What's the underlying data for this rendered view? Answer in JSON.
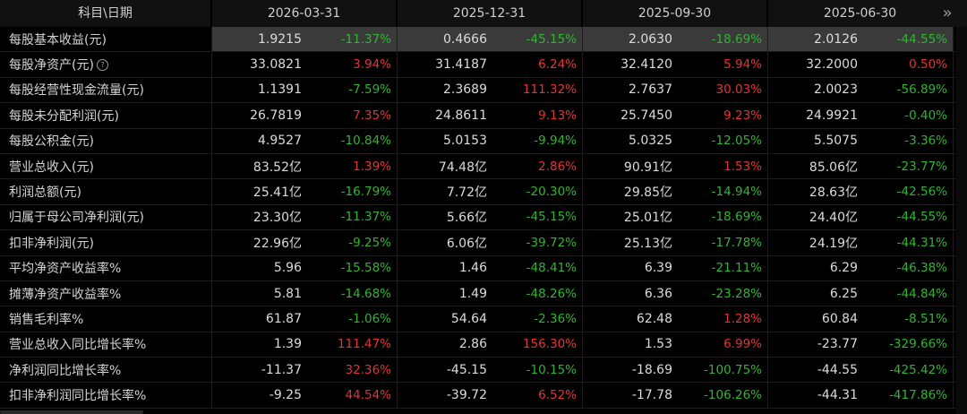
{
  "header": {
    "label": "科目\\日期",
    "dates": [
      "2026-03-31",
      "2025-12-31",
      "2025-09-30",
      "2025-06-30"
    ],
    "more_icon": "»"
  },
  "rows": [
    {
      "label": "每股基本收益(元)",
      "cells": [
        [
          "1.9215",
          "-11.37%"
        ],
        [
          "0.4666",
          "-45.15%"
        ],
        [
          "2.0630",
          "-18.69%"
        ],
        [
          "2.0126",
          "-44.55%"
        ]
      ]
    },
    {
      "label": "每股净资产(元)",
      "info": "?",
      "cells": [
        [
          "33.0821",
          "3.94%"
        ],
        [
          "31.4187",
          "6.24%"
        ],
        [
          "32.4120",
          "5.94%"
        ],
        [
          "32.2000",
          "0.50%"
        ]
      ]
    },
    {
      "label": "每股经营性现金流量(元)",
      "cells": [
        [
          "1.1391",
          "-7.59%"
        ],
        [
          "2.3689",
          "111.32%"
        ],
        [
          "2.7637",
          "30.03%"
        ],
        [
          "2.0023",
          "-56.89%"
        ]
      ]
    },
    {
      "label": "每股未分配利润(元)",
      "cells": [
        [
          "26.7819",
          "7.35%"
        ],
        [
          "24.8611",
          "9.13%"
        ],
        [
          "25.7450",
          "9.23%"
        ],
        [
          "24.9921",
          "-0.40%"
        ]
      ]
    },
    {
      "label": "每股公积金(元)",
      "cells": [
        [
          "4.9527",
          "-10.84%"
        ],
        [
          "5.0153",
          "-9.94%"
        ],
        [
          "5.0325",
          "-12.05%"
        ],
        [
          "5.5075",
          "-3.36%"
        ]
      ]
    },
    {
      "label": "营业总收入(元)",
      "cells": [
        [
          "83.52亿",
          "1.39%"
        ],
        [
          "74.48亿",
          "2.86%"
        ],
        [
          "90.91亿",
          "1.53%"
        ],
        [
          "85.06亿",
          "-23.77%"
        ]
      ]
    },
    {
      "label": "利润总额(元)",
      "cells": [
        [
          "25.41亿",
          "-16.79%"
        ],
        [
          "7.72亿",
          "-20.30%"
        ],
        [
          "29.85亿",
          "-14.94%"
        ],
        [
          "28.63亿",
          "-42.56%"
        ]
      ]
    },
    {
      "label": "归属于母公司净利润(元)",
      "cells": [
        [
          "23.30亿",
          "-11.37%"
        ],
        [
          "5.66亿",
          "-45.15%"
        ],
        [
          "25.01亿",
          "-18.69%"
        ],
        [
          "24.40亿",
          "-44.55%"
        ]
      ]
    },
    {
      "label": "扣非净利润(元)",
      "cells": [
        [
          "22.96亿",
          "-9.25%"
        ],
        [
          "6.06亿",
          "-39.72%"
        ],
        [
          "25.13亿",
          "-17.78%"
        ],
        [
          "24.19亿",
          "-44.31%"
        ]
      ]
    },
    {
      "label": "平均净资产收益率%",
      "cells": [
        [
          "5.96",
          "-15.58%"
        ],
        [
          "1.46",
          "-48.41%"
        ],
        [
          "6.39",
          "-21.11%"
        ],
        [
          "6.29",
          "-46.38%"
        ]
      ]
    },
    {
      "label": "摊薄净资产收益率%",
      "cells": [
        [
          "5.81",
          "-14.68%"
        ],
        [
          "1.49",
          "-48.26%"
        ],
        [
          "6.36",
          "-23.28%"
        ],
        [
          "6.25",
          "-44.84%"
        ]
      ]
    },
    {
      "label": "销售毛利率%",
      "cells": [
        [
          "61.87",
          "-1.06%"
        ],
        [
          "54.64",
          "-2.36%"
        ],
        [
          "62.48",
          "1.28%"
        ],
        [
          "60.84",
          "-8.51%"
        ]
      ]
    },
    {
      "label": "营业总收入同比增长率%",
      "cells": [
        [
          "1.39",
          "111.47%"
        ],
        [
          "2.86",
          "156.30%"
        ],
        [
          "1.53",
          "6.99%"
        ],
        [
          "-23.77",
          "-329.66%"
        ]
      ]
    },
    {
      "label": "净利润同比增长率%",
      "cells": [
        [
          "-11.37",
          "32.36%"
        ],
        [
          "-45.15",
          "-10.15%"
        ],
        [
          "-18.69",
          "-100.75%"
        ],
        [
          "-44.55",
          "-425.42%"
        ]
      ]
    },
    {
      "label": "扣非净利润同比增长率%",
      "cells": [
        [
          "-9.25",
          "44.54%"
        ],
        [
          "-39.72",
          "6.52%"
        ],
        [
          "-17.78",
          "-106.26%"
        ],
        [
          "-44.31",
          "-417.86%"
        ]
      ]
    }
  ],
  "colors": {
    "up": "#e03535",
    "down": "#32b432",
    "selected_row": "#3a3a3a"
  }
}
